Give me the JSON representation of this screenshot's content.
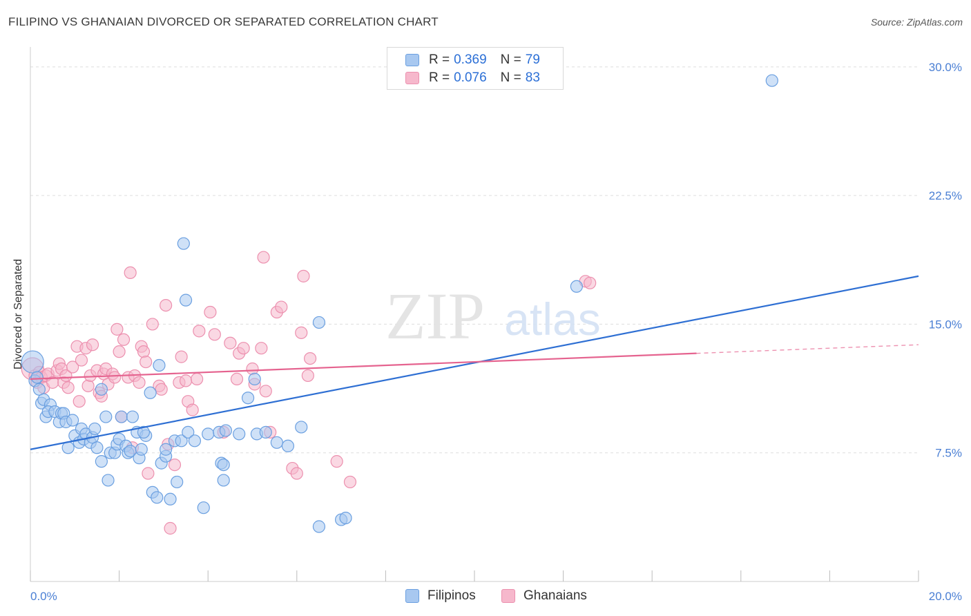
{
  "header": {
    "title": "FILIPINO VS GHANAIAN DIVORCED OR SEPARATED CORRELATION CHART",
    "source": "Source: ZipAtlas.com"
  },
  "watermark": {
    "zip": "ZIP",
    "atlas": "atlas"
  },
  "colors": {
    "filipino_fill": "#a8c8f0",
    "filipino_stroke": "#6a9fe0",
    "filipino_line": "#2e6fd3",
    "ghanaian_fill": "#f6b8cc",
    "ghanaian_stroke": "#ec8fae",
    "ghanaian_line": "#e5638f",
    "axis_label": "#4a7fd4",
    "grid": "#dddddd"
  },
  "legend": {
    "filipino": {
      "r_label": "R =",
      "r_value": "0.369",
      "n_label": "N =",
      "n_value": "79"
    },
    "ghanaian": {
      "r_label": "R =",
      "r_value": "0.076",
      "n_label": "N =",
      "n_value": "83"
    }
  },
  "bottom_legend": {
    "filipino": "Filipinos",
    "ghanaian": "Ghanaians"
  },
  "chart_data": {
    "type": "scatter",
    "title": "FILIPINO VS GHANAIAN DIVORCED OR SEPARATED CORRELATION CHART",
    "xlabel": "",
    "ylabel": "Divorced or Separated",
    "xlim": [
      0,
      20
    ],
    "ylim": [
      0,
      31
    ],
    "x_tick_labels": [
      "0.0%",
      "20.0%"
    ],
    "y_ticks": [
      7.5,
      15.0,
      22.5,
      30.0
    ],
    "y_tick_labels": [
      "7.5%",
      "15.0%",
      "22.5%",
      "30.0%"
    ],
    "grid": true,
    "legend_position": "top-center",
    "series": [
      {
        "name": "Filipinos",
        "r": 0.369,
        "n": 79,
        "trend": {
          "x": [
            0,
            20
          ],
          "y": [
            7.7,
            17.8
          ],
          "dashed_from": null
        },
        "points": [
          [
            0.05,
            12.8
          ],
          [
            0.1,
            11.7
          ],
          [
            0.15,
            11.9
          ],
          [
            0.2,
            11.2
          ],
          [
            0.25,
            10.4
          ],
          [
            0.3,
            10.6
          ],
          [
            0.35,
            9.6
          ],
          [
            0.45,
            10.3
          ],
          [
            0.4,
            9.9
          ],
          [
            0.55,
            9.9
          ],
          [
            0.65,
            9.3
          ],
          [
            0.7,
            9.8
          ],
          [
            0.75,
            9.8
          ],
          [
            0.8,
            9.3
          ],
          [
            0.85,
            7.8
          ],
          [
            0.95,
            9.4
          ],
          [
            1.0,
            8.5
          ],
          [
            1.1,
            8.1
          ],
          [
            1.15,
            8.9
          ],
          [
            1.2,
            8.3
          ],
          [
            1.25,
            8.6
          ],
          [
            1.35,
            8.1
          ],
          [
            1.4,
            8.4
          ],
          [
            1.45,
            8.9
          ],
          [
            1.5,
            7.8
          ],
          [
            1.6,
            11.2
          ],
          [
            1.6,
            7.0
          ],
          [
            1.7,
            9.6
          ],
          [
            1.75,
            5.9
          ],
          [
            1.8,
            7.5
          ],
          [
            1.9,
            7.5
          ],
          [
            1.95,
            8.0
          ],
          [
            2.0,
            8.3
          ],
          [
            2.05,
            9.6
          ],
          [
            2.15,
            7.9
          ],
          [
            2.2,
            7.5
          ],
          [
            2.25,
            7.6
          ],
          [
            2.3,
            9.6
          ],
          [
            2.4,
            8.7
          ],
          [
            2.45,
            7.2
          ],
          [
            2.5,
            7.7
          ],
          [
            2.6,
            8.5
          ],
          [
            2.55,
            8.7
          ],
          [
            2.7,
            11.0
          ],
          [
            2.75,
            5.2
          ],
          [
            2.85,
            4.9
          ],
          [
            2.9,
            12.6
          ],
          [
            2.95,
            6.9
          ],
          [
            3.05,
            7.3
          ],
          [
            3.05,
            7.7
          ],
          [
            3.15,
            4.8
          ],
          [
            3.25,
            8.2
          ],
          [
            3.3,
            5.8
          ],
          [
            3.4,
            8.2
          ],
          [
            3.45,
            19.7
          ],
          [
            3.5,
            16.4
          ],
          [
            3.55,
            8.7
          ],
          [
            3.7,
            8.2
          ],
          [
            3.9,
            4.3
          ],
          [
            4.0,
            8.6
          ],
          [
            4.25,
            8.7
          ],
          [
            4.3,
            6.9
          ],
          [
            4.35,
            6.8
          ],
          [
            4.35,
            5.9
          ],
          [
            4.4,
            8.8
          ],
          [
            4.7,
            8.6
          ],
          [
            4.9,
            10.7
          ],
          [
            5.05,
            11.8
          ],
          [
            5.1,
            8.6
          ],
          [
            5.3,
            8.7
          ],
          [
            5.55,
            8.1
          ],
          [
            5.8,
            7.9
          ],
          [
            6.1,
            9.0
          ],
          [
            6.5,
            15.1
          ],
          [
            6.5,
            3.2
          ],
          [
            7.0,
            3.6
          ],
          [
            7.1,
            3.7
          ],
          [
            12.3,
            17.2
          ],
          [
            16.7,
            29.2
          ]
        ]
      },
      {
        "name": "Ghanaians",
        "r": 0.076,
        "n": 83,
        "trend": {
          "x": [
            0,
            20
          ],
          "y": [
            11.8,
            13.8
          ],
          "dashed_from": 15.0
        },
        "points": [
          [
            0.05,
            12.4
          ],
          [
            0.1,
            12.0
          ],
          [
            0.15,
            11.6
          ],
          [
            0.2,
            12.2
          ],
          [
            0.25,
            11.9
          ],
          [
            0.3,
            11.3
          ],
          [
            0.35,
            12.0
          ],
          [
            0.4,
            12.1
          ],
          [
            0.5,
            11.6
          ],
          [
            0.6,
            12.3
          ],
          [
            0.65,
            12.7
          ],
          [
            0.7,
            12.4
          ],
          [
            0.75,
            11.6
          ],
          [
            0.8,
            12.0
          ],
          [
            0.85,
            11.3
          ],
          [
            0.95,
            12.5
          ],
          [
            1.05,
            13.7
          ],
          [
            1.1,
            10.5
          ],
          [
            1.15,
            12.9
          ],
          [
            1.25,
            13.6
          ],
          [
            1.3,
            11.4
          ],
          [
            1.35,
            12.0
          ],
          [
            1.4,
            13.8
          ],
          [
            1.5,
            12.3
          ],
          [
            1.55,
            11.0
          ],
          [
            1.6,
            10.8
          ],
          [
            1.65,
            12.1
          ],
          [
            1.7,
            12.4
          ],
          [
            1.75,
            11.5
          ],
          [
            1.85,
            12.1
          ],
          [
            1.9,
            11.9
          ],
          [
            1.95,
            14.7
          ],
          [
            2.0,
            13.4
          ],
          [
            2.05,
            9.6
          ],
          [
            2.1,
            14.1
          ],
          [
            2.2,
            11.9
          ],
          [
            2.25,
            18.0
          ],
          [
            2.3,
            7.8
          ],
          [
            2.35,
            12.0
          ],
          [
            2.45,
            11.6
          ],
          [
            2.5,
            13.7
          ],
          [
            2.55,
            13.4
          ],
          [
            2.6,
            12.8
          ],
          [
            2.65,
            6.3
          ],
          [
            2.75,
            15.0
          ],
          [
            2.9,
            11.4
          ],
          [
            2.95,
            11.2
          ],
          [
            3.05,
            16.1
          ],
          [
            3.1,
            8.0
          ],
          [
            3.15,
            3.1
          ],
          [
            3.25,
            6.8
          ],
          [
            3.35,
            11.6
          ],
          [
            3.4,
            13.1
          ],
          [
            3.5,
            11.7
          ],
          [
            3.55,
            10.5
          ],
          [
            3.65,
            10.0
          ],
          [
            3.75,
            11.8
          ],
          [
            3.8,
            14.6
          ],
          [
            4.05,
            15.7
          ],
          [
            4.15,
            14.4
          ],
          [
            4.35,
            8.7
          ],
          [
            4.5,
            13.9
          ],
          [
            4.65,
            11.8
          ],
          [
            4.7,
            13.3
          ],
          [
            4.8,
            13.6
          ],
          [
            5.0,
            12.4
          ],
          [
            5.05,
            11.5
          ],
          [
            5.2,
            13.6
          ],
          [
            5.25,
            18.9
          ],
          [
            5.3,
            11.1
          ],
          [
            5.4,
            8.7
          ],
          [
            5.55,
            15.7
          ],
          [
            5.65,
            16.0
          ],
          [
            5.9,
            6.6
          ],
          [
            6.0,
            6.3
          ],
          [
            6.15,
            17.8
          ],
          [
            6.1,
            14.5
          ],
          [
            6.25,
            12.0
          ],
          [
            6.3,
            13.0
          ],
          [
            6.9,
            7.0
          ],
          [
            7.2,
            5.8
          ],
          [
            12.5,
            17.5
          ],
          [
            12.6,
            17.4
          ]
        ]
      }
    ]
  }
}
